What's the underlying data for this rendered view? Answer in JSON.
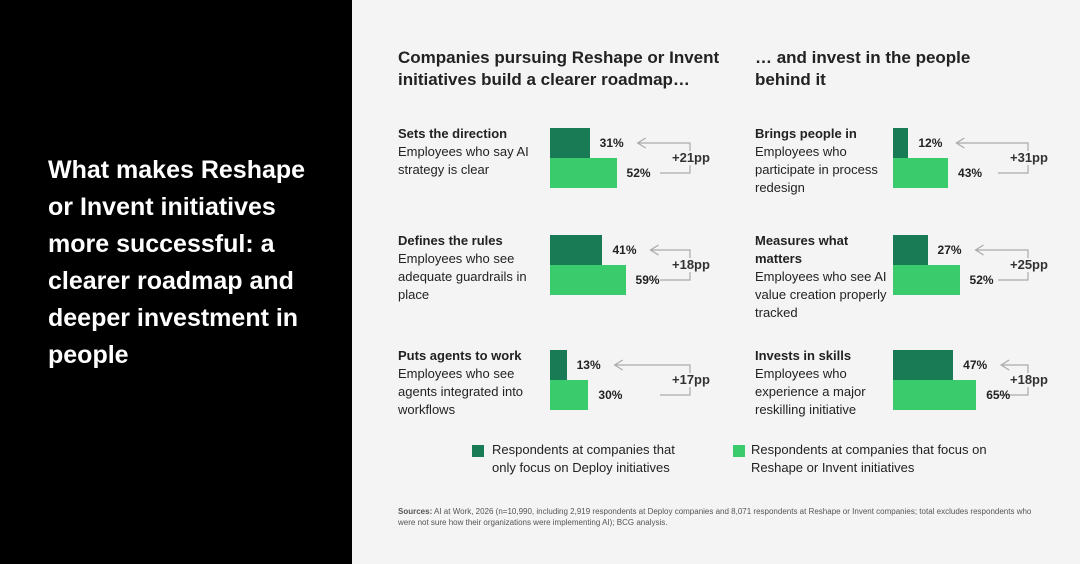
{
  "headline": "What makes Reshape or Invent initiatives more successful: a clearer roadmap and deeper investment in people",
  "chart_data": [
    {
      "type": "bar",
      "title": "Companies pursuing Reshape or Invent initiatives build a clearer roadmap…",
      "categories": [
        "Sets the direction",
        "Defines the rules",
        "Puts agents to work"
      ],
      "descriptions": [
        "Employees who say AI strategy is clear",
        "Employees who see adequate guardrails in place",
        "Employees who see agents integrated into workflows"
      ],
      "series": [
        {
          "name": "Respondents at companies that only focus on Deploy initiatives",
          "color": "#197a56",
          "values": [
            31,
            41,
            13
          ],
          "value_labels": [
            "31%",
            "41%",
            "13%"
          ]
        },
        {
          "name": "Respondents at companies that focus on Reshape or Invent initiatives",
          "color": "#3acb6c",
          "values": [
            52,
            59,
            30
          ],
          "value_labels": [
            "52%",
            "59%",
            "30%"
          ]
        }
      ],
      "differences": {
        "values": [
          21,
          18,
          17
        ],
        "value_labels": [
          "+21pp",
          "+18pp",
          "+17pp"
        ]
      }
    },
    {
      "type": "bar",
      "title": "… and invest in the people behind it",
      "categories": [
        "Brings people in",
        "Measures what matters",
        "Invests in skills"
      ],
      "descriptions": [
        "Employees who participate in process redesign",
        "Employees who see AI value creation properly tracked",
        "Employees who experience a major reskilling initiative"
      ],
      "series": [
        {
          "color": "#197a56",
          "values": [
            12,
            27,
            47
          ],
          "value_labels": [
            "12%",
            "27%",
            "47%"
          ]
        },
        {
          "color": "#3acb6c",
          "values": [
            43,
            52,
            65
          ],
          "value_labels": [
            "43%",
            "52%",
            "65%"
          ]
        }
      ],
      "differences": {
        "values": [
          31,
          25,
          18
        ],
        "value_labels": [
          "+31pp",
          "+25pp",
          "+18pp"
        ]
      }
    }
  ],
  "sources_label": "Sources:",
  "sources": "AI at Work, 2026 (n=10,990, including 2,919 respondents at Deploy companies and 8,071 respondents at Reshape or Invent companies; total excludes respondents who were not sure how their organizations were implementing AI); BCG analysis."
}
